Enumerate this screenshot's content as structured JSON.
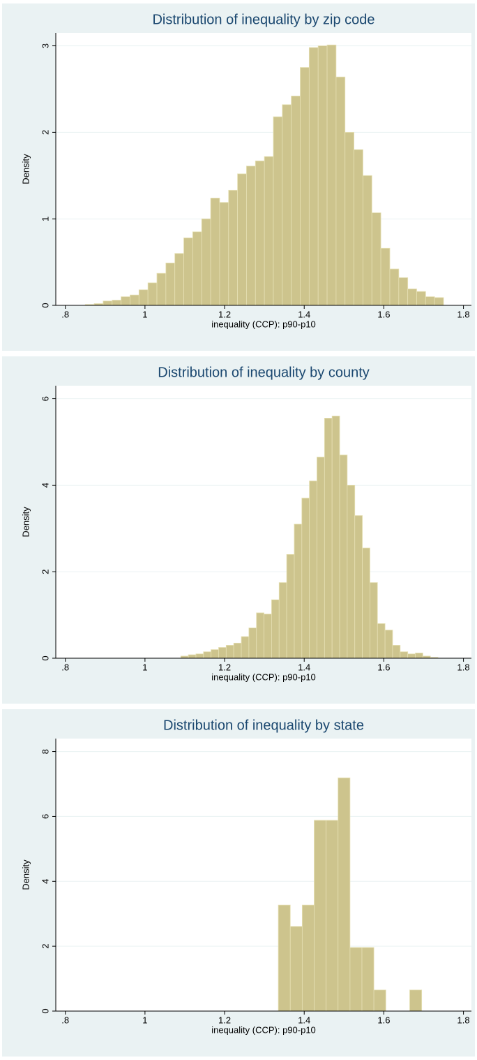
{
  "chart_data": [
    {
      "type": "histogram",
      "title": "Distribution of inequality by zip code",
      "xlabel": "inequality (CCP): p90-p10",
      "ylabel": "Density",
      "bins": [
        0.85,
        0.8725,
        0.895,
        0.9175,
        0.94,
        0.9625,
        0.985,
        1.0075,
        1.03,
        1.0525,
        1.075,
        1.0975,
        1.12,
        1.1425,
        1.165,
        1.1875,
        1.21,
        1.2325,
        1.255,
        1.2775,
        1.3,
        1.3225,
        1.345,
        1.3675,
        1.39,
        1.4125,
        1.435,
        1.4575,
        1.48,
        1.5025,
        1.525,
        1.5475,
        1.57,
        1.5925,
        1.615,
        1.6375,
        1.66,
        1.6825,
        1.705,
        1.7275,
        1.75
      ],
      "values": [
        0.01,
        0.02,
        0.05,
        0.06,
        0.1,
        0.12,
        0.18,
        0.26,
        0.37,
        0.49,
        0.6,
        0.78,
        0.85,
        1.0,
        1.24,
        1.19,
        1.33,
        1.52,
        1.61,
        1.67,
        1.72,
        2.18,
        2.32,
        2.42,
        2.75,
        2.98,
        3.0,
        3.01,
        2.64,
        2.0,
        1.8,
        1.5,
        1.07,
        0.66,
        0.42,
        0.32,
        0.19,
        0.16,
        0.1,
        0.09
      ],
      "color": "#cdc48d",
      "xlim": [
        0.776,
        1.82
      ],
      "ylim": [
        0,
        3.15
      ],
      "xticks": [
        {
          "value": 0.8,
          "label": ".8"
        },
        1,
        1.2,
        1.4,
        1.6,
        1.8
      ],
      "yticks": [
        0,
        1,
        2,
        3
      ],
      "grid": true
    },
    {
      "type": "histogram",
      "title": "Distribution of inequality by county",
      "xlabel": "inequality (CCP): p90-p10",
      "ylabel": "Density",
      "bins": [
        1.09,
        1.109,
        1.128,
        1.147,
        1.166,
        1.185,
        1.204,
        1.223,
        1.242,
        1.261,
        1.28,
        1.299,
        1.318,
        1.337,
        1.356,
        1.375,
        1.394,
        1.413,
        1.432,
        1.451,
        1.47,
        1.489,
        1.508,
        1.527,
        1.546,
        1.565,
        1.584,
        1.603,
        1.622,
        1.641,
        1.66,
        1.679,
        1.698,
        1.717,
        1.736
      ],
      "values": [
        0.05,
        0.08,
        0.1,
        0.15,
        0.2,
        0.25,
        0.3,
        0.35,
        0.5,
        0.7,
        1.05,
        1.02,
        1.35,
        1.75,
        2.4,
        3.1,
        3.7,
        4.1,
        4.65,
        5.55,
        5.6,
        4.7,
        4.0,
        3.3,
        2.55,
        1.75,
        0.8,
        0.65,
        0.3,
        0.15,
        0.1,
        0.12,
        0.05,
        0.02
      ],
      "color": "#cdc48d",
      "xlim": [
        0.776,
        1.82
      ],
      "ylim": [
        0,
        6.3
      ],
      "xticks": [
        {
          "value": 0.8,
          "label": ".8"
        },
        1,
        1.2,
        1.4,
        1.6,
        1.8
      ],
      "yticks": [
        0,
        2,
        4,
        6
      ],
      "grid": true
    },
    {
      "type": "histogram",
      "title": "Distribution of inequality by state",
      "xlabel": "inequality (CCP): p90-p10",
      "ylabel": "Density",
      "bins": [
        1.335,
        1.365,
        1.395,
        1.425,
        1.455,
        1.485,
        1.515,
        1.545,
        1.575,
        1.605,
        1.635,
        1.665,
        1.695
      ],
      "values": [
        3.27,
        2.61,
        3.27,
        5.88,
        5.88,
        7.19,
        1.96,
        1.96,
        0.65,
        0,
        0,
        0.65
      ],
      "color": "#cdc48d",
      "xlim": [
        0.776,
        1.82
      ],
      "ylim": [
        0,
        8.4
      ],
      "xticks": [
        {
          "value": 0.8,
          "label": ".8"
        },
        1,
        1.2,
        1.4,
        1.6,
        1.8
      ],
      "yticks": [
        0,
        2,
        4,
        6,
        8
      ],
      "grid": true
    }
  ]
}
